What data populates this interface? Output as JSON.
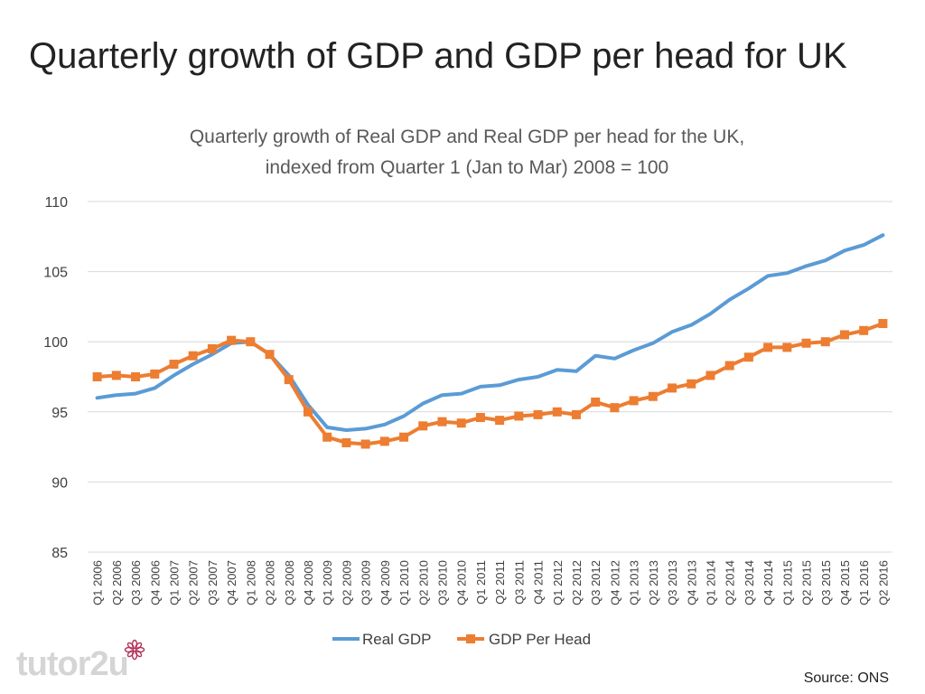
{
  "slide": {
    "title": "Quarterly growth of GDP and GDP per head for UK"
  },
  "footer": {
    "source": "Source: ONS",
    "logo_text": "tutor2u"
  },
  "colors": {
    "real_gdp": "#5b9bd5",
    "gdp_per_head": "#ed7d31",
    "grid": "#d9d9d9"
  },
  "chart_data": {
    "type": "line",
    "title": [
      "Quarterly growth of Real GDP and Real GDP per head for the UK,",
      "indexed from Quarter 1 (Jan to Mar) 2008 = 100"
    ],
    "xlabel": "",
    "ylabel": "",
    "ylim": [
      85,
      110
    ],
    "yticks": [
      85,
      90,
      95,
      100,
      105,
      110
    ],
    "grid": true,
    "legend": "bottom-center",
    "categories": [
      "Q1 2006",
      "Q2 2006",
      "Q3 2006",
      "Q4 2006",
      "Q1 2007",
      "Q2 2007",
      "Q3 2007",
      "Q4 2007",
      "Q1 2008",
      "Q2 2008",
      "Q3 2008",
      "Q4 2008",
      "Q1 2009",
      "Q2 2009",
      "Q3 2009",
      "Q4 2009",
      "Q1 2010",
      "Q2 2010",
      "Q3 2010",
      "Q4 2010",
      "Q1 2011",
      "Q2 2011",
      "Q3 2011",
      "Q4 2011",
      "Q1 2012",
      "Q2 2012",
      "Q3 2012",
      "Q4 2012",
      "Q1 2013",
      "Q2 2013",
      "Q3 2013",
      "Q4 2013",
      "Q1 2014",
      "Q2 2014",
      "Q3 2014",
      "Q4 2014",
      "Q1 2015",
      "Q2 2015",
      "Q3 2015",
      "Q4 2015",
      "Q1 2016",
      "Q2 2016"
    ],
    "series": [
      {
        "name": "Real GDP",
        "color": "#5b9bd5",
        "marker": "none",
        "values": [
          96.0,
          96.2,
          96.3,
          96.7,
          97.6,
          98.4,
          99.1,
          99.9,
          100.0,
          99.1,
          97.6,
          95.5,
          93.9,
          93.7,
          93.8,
          94.1,
          94.7,
          95.6,
          96.2,
          96.3,
          96.8,
          96.9,
          97.3,
          97.5,
          98.0,
          97.9,
          99.0,
          98.8,
          99.4,
          99.9,
          100.7,
          101.2,
          102.0,
          103.0,
          103.8,
          104.7,
          104.9,
          105.4,
          105.8,
          106.5,
          106.9,
          107.6
        ]
      },
      {
        "name": "GDP Per Head",
        "color": "#ed7d31",
        "marker": "square",
        "values": [
          97.5,
          97.6,
          97.5,
          97.7,
          98.4,
          99.0,
          99.5,
          100.1,
          100.0,
          99.1,
          97.3,
          95.0,
          93.2,
          92.8,
          92.7,
          92.9,
          93.2,
          94.0,
          94.3,
          94.2,
          94.6,
          94.4,
          94.7,
          94.8,
          95.0,
          94.8,
          95.7,
          95.3,
          95.8,
          96.1,
          96.7,
          97.0,
          97.6,
          98.3,
          98.9,
          99.6,
          99.6,
          99.9,
          100.0,
          100.5,
          100.8,
          101.3
        ]
      }
    ]
  }
}
